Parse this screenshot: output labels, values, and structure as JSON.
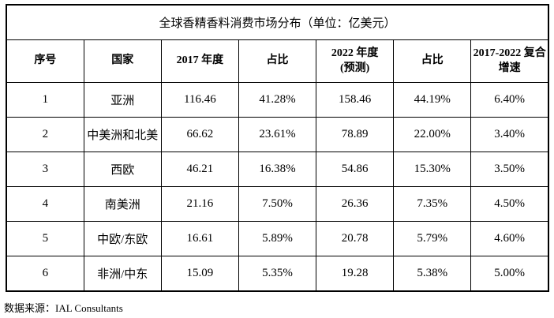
{
  "title": "全球香精香料消费市场分布（单位：亿美元）",
  "table": {
    "headers": [
      "序号",
      "国家",
      "2017 年度",
      "占比",
      "2022 年度\n(预测)",
      "占比",
      "2017-2022 复合增速"
    ],
    "rows": [
      [
        "1",
        "亚洲",
        "116.46",
        "41.28%",
        "158.46",
        "44.19%",
        "6.40%"
      ],
      [
        "2",
        "中美洲和北美",
        "66.62",
        "23.61%",
        "78.89",
        "22.00%",
        "3.40%"
      ],
      [
        "3",
        "西欧",
        "46.21",
        "16.38%",
        "54.86",
        "15.30%",
        "3.50%"
      ],
      [
        "4",
        "南美洲",
        "21.16",
        "7.50%",
        "26.36",
        "7.35%",
        "4.50%"
      ],
      [
        "5",
        "中欧/东欧",
        "16.61",
        "5.89%",
        "20.78",
        "5.79%",
        "4.60%"
      ],
      [
        "6",
        "非洲/中东",
        "15.09",
        "5.35%",
        "19.28",
        "5.38%",
        "5.00%"
      ]
    ]
  },
  "footer": {
    "source_label": "数据来源：IAL Consultants"
  },
  "colors": {
    "text": "#000000",
    "border": "#000000",
    "background": "#ffffff"
  }
}
